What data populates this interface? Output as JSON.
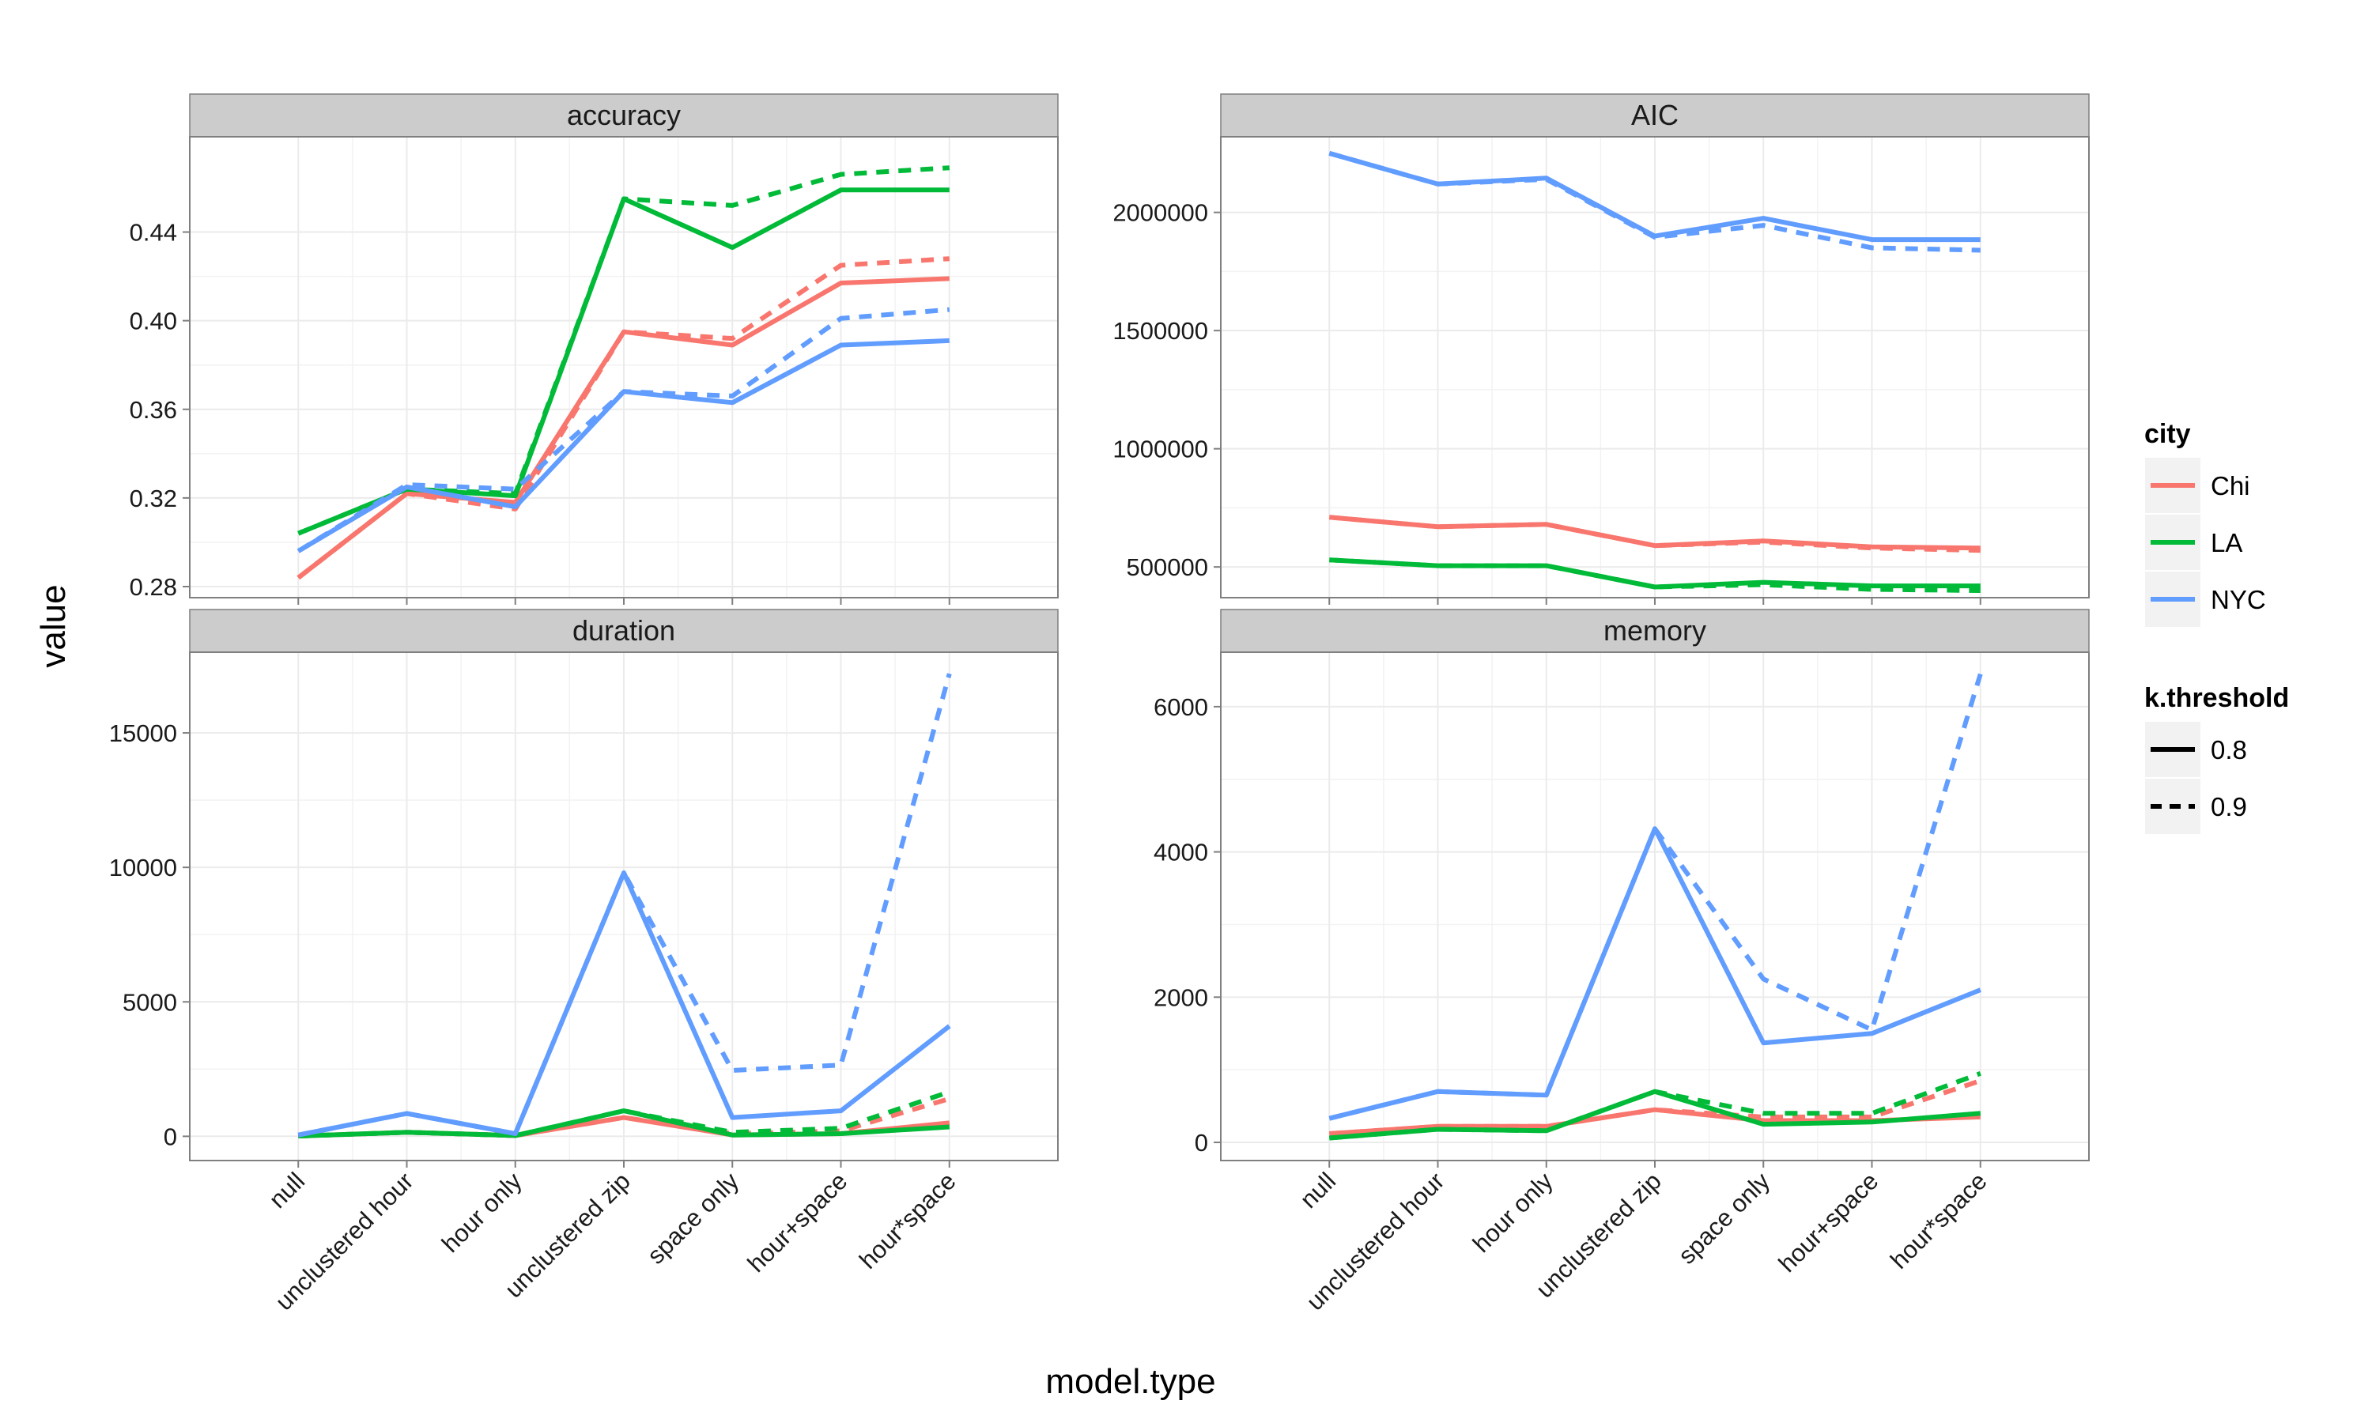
{
  "chart_data": {
    "type": "line",
    "xlabel": "model.type",
    "ylabel": "value",
    "categories": [
      "null",
      "unclustered hour",
      "hour only",
      "unclustered zip",
      "space only",
      "hour+space",
      "hour*space"
    ],
    "legend": {
      "color_title": "city",
      "linetype_title": "k.threshold",
      "cities": [
        {
          "name": "Chi",
          "color": "#F8766D"
        },
        {
          "name": "LA",
          "color": "#00BA38"
        },
        {
          "name": "NYC",
          "color": "#619CFF"
        }
      ],
      "thresholds": [
        {
          "name": "0.8",
          "dash": "solid"
        },
        {
          "name": "0.9",
          "dash": "dashed"
        }
      ],
      "placement": "right"
    },
    "grid": true,
    "panels": [
      {
        "name": "accuracy",
        "ylim": [
          0.275,
          0.483
        ],
        "yticks": [
          0.28,
          0.32,
          0.36,
          0.4,
          0.44
        ],
        "ytick_labels": [
          "0.28",
          "0.32",
          "0.36",
          "0.40",
          "0.44"
        ],
        "series": [
          {
            "city": "Chi",
            "threshold": "0.8",
            "values": [
              0.284,
              0.322,
              0.318,
              0.395,
              0.389,
              0.417,
              0.419
            ]
          },
          {
            "city": "Chi",
            "threshold": "0.9",
            "values": [
              0.284,
              0.322,
              0.315,
              0.395,
              0.392,
              0.425,
              0.428
            ]
          },
          {
            "city": "LA",
            "threshold": "0.8",
            "values": [
              0.304,
              0.324,
              0.321,
              0.455,
              0.433,
              0.459,
              0.459
            ]
          },
          {
            "city": "LA",
            "threshold": "0.9",
            "values": [
              0.304,
              0.324,
              0.322,
              0.455,
              0.452,
              0.466,
              0.469
            ]
          },
          {
            "city": "NYC",
            "threshold": "0.8",
            "values": [
              0.296,
              0.325,
              0.316,
              0.368,
              0.363,
              0.389,
              0.391
            ]
          },
          {
            "city": "NYC",
            "threshold": "0.9",
            "values": [
              0.296,
              0.326,
              0.324,
              0.368,
              0.366,
              0.401,
              0.405
            ]
          }
        ]
      },
      {
        "name": "AIC",
        "ylim": [
          370000,
          2320000
        ],
        "yticks": [
          500000,
          1000000,
          1500000,
          2000000
        ],
        "ytick_labels": [
          "500000",
          "1000000",
          "1500000",
          "2000000"
        ],
        "series": [
          {
            "city": "Chi",
            "threshold": "0.8",
            "values": [
              710000,
              670000,
              680000,
              590000,
              610000,
              585000,
              580000
            ]
          },
          {
            "city": "Chi",
            "threshold": "0.9",
            "values": [
              710000,
              670000,
              680000,
              590000,
              605000,
              580000,
              570000
            ]
          },
          {
            "city": "LA",
            "threshold": "0.8",
            "values": [
              530000,
              505000,
              505000,
              415000,
              435000,
              420000,
              420000
            ]
          },
          {
            "city": "LA",
            "threshold": "0.9",
            "values": [
              530000,
              505000,
              505000,
              415000,
              425000,
              405000,
              400000
            ]
          },
          {
            "city": "NYC",
            "threshold": "0.8",
            "values": [
              2250000,
              2120000,
              2145000,
              1900000,
              1975000,
              1885000,
              1885000
            ]
          },
          {
            "city": "NYC",
            "threshold": "0.9",
            "values": [
              2250000,
              2120000,
              2140000,
              1895000,
              1945000,
              1850000,
              1840000
            ]
          }
        ]
      },
      {
        "name": "duration",
        "ylim": [
          -900,
          18000
        ],
        "yticks": [
          0,
          5000,
          10000,
          15000
        ],
        "ytick_labels": [
          "0",
          "5000",
          "10000",
          "15000"
        ],
        "series": [
          {
            "city": "Chi",
            "threshold": "0.8",
            "values": [
              10,
              150,
              30,
              700,
              50,
              100,
              500
            ]
          },
          {
            "city": "Chi",
            "threshold": "0.9",
            "values": [
              10,
              150,
              30,
              700,
              100,
              200,
              1400
            ]
          },
          {
            "city": "LA",
            "threshold": "0.8",
            "values": [
              10,
              150,
              30,
              950,
              50,
              100,
              350
            ]
          },
          {
            "city": "LA",
            "threshold": "0.9",
            "values": [
              10,
              150,
              30,
              950,
              150,
              300,
              1650
            ]
          },
          {
            "city": "NYC",
            "threshold": "0.8",
            "values": [
              50,
              850,
              100,
              9800,
              700,
              950,
              4100
            ]
          },
          {
            "city": "NYC",
            "threshold": "0.9",
            "values": [
              50,
              850,
              100,
              9800,
              2450,
              2650,
              17200
            ]
          }
        ]
      },
      {
        "name": "memory",
        "ylim": [
          -250,
          6750
        ],
        "yticks": [
          0,
          2000,
          4000,
          6000
        ],
        "ytick_labels": [
          "0",
          "2000",
          "4000",
          "6000"
        ],
        "series": [
          {
            "city": "Chi",
            "threshold": "0.8",
            "values": [
              120,
              220,
              220,
              450,
              300,
              300,
              350
            ]
          },
          {
            "city": "Chi",
            "threshold": "0.9",
            "values": [
              120,
              220,
              220,
              450,
              350,
              350,
              850
            ]
          },
          {
            "city": "LA",
            "threshold": "0.8",
            "values": [
              60,
              180,
              160,
              700,
              250,
              280,
              400
            ]
          },
          {
            "city": "LA",
            "threshold": "0.9",
            "values": [
              60,
              180,
              160,
              700,
              400,
              400,
              950
            ]
          },
          {
            "city": "NYC",
            "threshold": "0.8",
            "values": [
              330,
              700,
              650,
              4320,
              1370,
              1500,
              2100
            ]
          },
          {
            "city": "NYC",
            "threshold": "0.9",
            "values": [
              330,
              700,
              650,
              4320,
              2250,
              1550,
              6450
            ]
          }
        ]
      }
    ]
  }
}
